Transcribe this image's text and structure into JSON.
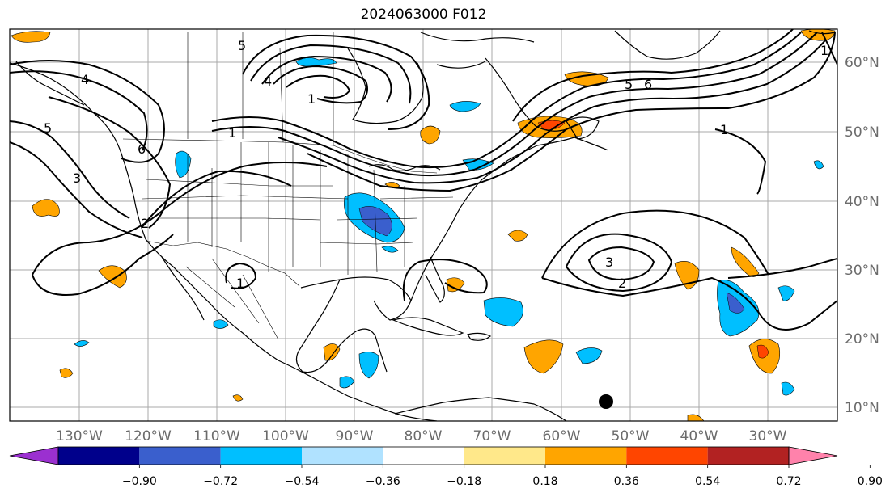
{
  "title": "2024063000 F012",
  "map": {
    "lat_labels": [
      "60°N",
      "50°N",
      "40°N",
      "30°N",
      "20°N",
      "10°N"
    ],
    "lon_labels": [
      "130°W",
      "120°W",
      "110°W",
      "100°W",
      "90°W",
      "80°W",
      "70°W",
      "60°W",
      "50°W",
      "40°W",
      "30°W"
    ],
    "contour_labels": [
      "1",
      "2",
      "3",
      "4",
      "5",
      "6"
    ],
    "marker": "black-dot"
  },
  "colorbar": {
    "ticks": [
      "−0.90",
      "−0.72",
      "−0.54",
      "−0.36",
      "−0.18",
      "0.18",
      "0.36",
      "0.54",
      "0.72",
      "0.90"
    ],
    "colors": [
      "#9b30d0",
      "#00008b",
      "#3a5fcd",
      "#00bfff",
      "#b0e2ff",
      "#ffffff",
      "#ffe88a",
      "#ffa500",
      "#ff4500",
      "#b22222",
      "#ff82ab"
    ]
  }
}
